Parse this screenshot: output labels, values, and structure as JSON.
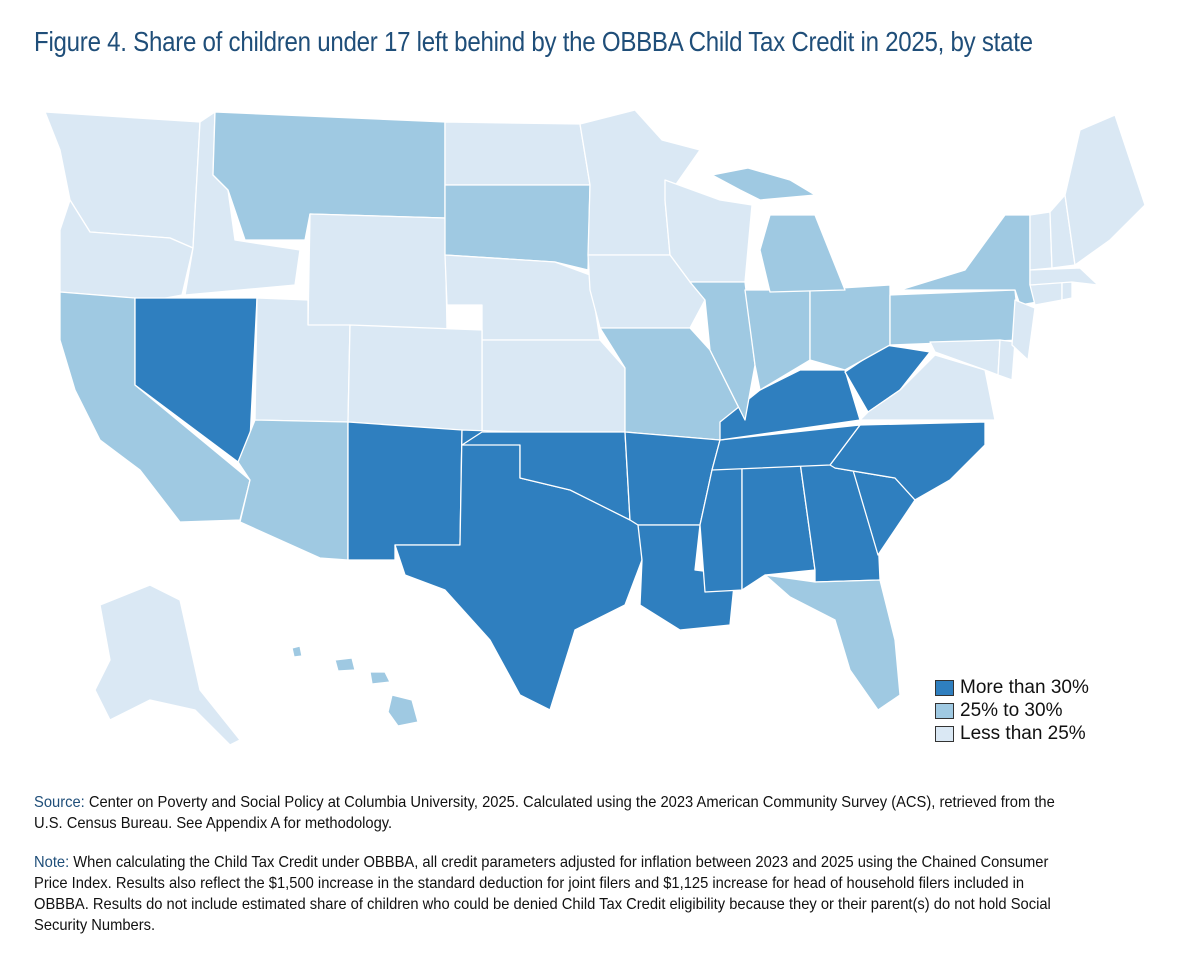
{
  "title": "Figure 4. Share of children under 17 left behind by the OBBBA Child Tax Credit in 2025, by state",
  "colors": {
    "high": "#2f7fbf",
    "mid": "#9fc9e2",
    "low": "#dae8f4"
  },
  "legend": [
    {
      "key": "high",
      "label": "More than 30%"
    },
    {
      "key": "mid",
      "label": "25% to 30%"
    },
    {
      "key": "low",
      "label": "Less than 25%"
    }
  ],
  "states": {
    "WA": "low",
    "OR": "low",
    "ID": "low",
    "MT": "mid",
    "WY": "low",
    "ND": "low",
    "SD": "mid",
    "NE": "low",
    "KS": "low",
    "MN": "low",
    "WI": "low",
    "IA": "low",
    "CA": "mid",
    "NV": "high",
    "UT": "low",
    "CO": "low",
    "AZ": "mid",
    "NM": "high",
    "TX": "high",
    "OK": "high",
    "MO": "mid",
    "AR": "high",
    "LA": "high",
    "MS": "high",
    "AL": "high",
    "GA": "high",
    "FL": "mid",
    "SC": "high",
    "NC": "high",
    "TN": "high",
    "KY": "high",
    "WV": "high",
    "VA": "low",
    "IL": "mid",
    "IN": "mid",
    "OH": "mid",
    "MI": "mid",
    "PA": "mid",
    "NY": "mid",
    "MD": "low",
    "DE": "low",
    "NJ": "low",
    "CT": "low",
    "RI": "low",
    "MA": "low",
    "VT": "low",
    "NH": "low",
    "ME": "low",
    "AK": "low",
    "HI": "mid"
  },
  "source": {
    "label": "Source:",
    "text": "Center on Poverty and Social Policy at Columbia University, 2025. Calculated using the 2023 American Community Survey (ACS), retrieved from the U.S. Census Bureau. See Appendix A for methodology."
  },
  "note": {
    "label": "Note:",
    "text": "When calculating the Child Tax Credit under OBBBA, all credit parameters adjusted for inflation between 2023 and 2025 using the Chained Consumer Price Index. Results also reflect the $1,500 increase in the standard deduction for joint filers and $1,125 increase for head of household filers included in OBBBA. Results do not include estimated share of children who could be denied Child Tax Credit eligibility because they or their parent(s) do not hold Social Security Numbers."
  }
}
